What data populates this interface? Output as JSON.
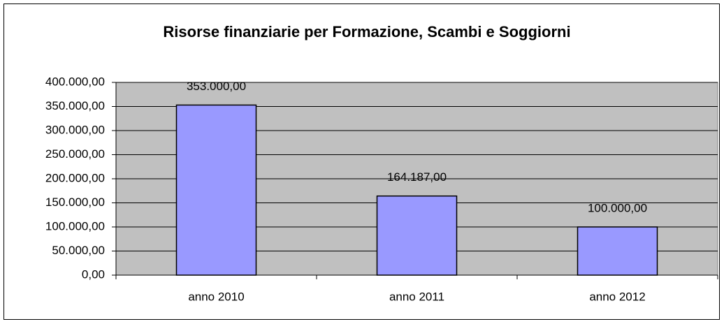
{
  "chart_data": {
    "type": "bar",
    "title": "Risorse finanziarie per Formazione, Scambi e Soggiorni",
    "categories": [
      "anno 2010",
      "anno 2011",
      "anno 2012"
    ],
    "values": [
      353000,
      164187,
      100000
    ],
    "value_labels": [
      "353.000,00",
      "164.187,00",
      "100.000,00"
    ],
    "color": "#9999ff",
    "ylim": [
      0,
      400000
    ],
    "yticks": [
      {
        "value": 0,
        "label": "0,00"
      },
      {
        "value": 50000,
        "label": "50.000,00"
      },
      {
        "value": 100000,
        "label": "100.000,00"
      },
      {
        "value": 150000,
        "label": "150.000,00"
      },
      {
        "value": 200000,
        "label": "200.000,00"
      },
      {
        "value": 250000,
        "label": "250.000,00"
      },
      {
        "value": 300000,
        "label": "300.000,00"
      },
      {
        "value": 350000,
        "label": "350.000,00"
      },
      {
        "value": 400000,
        "label": "400.000,00"
      }
    ],
    "grid": true
  }
}
